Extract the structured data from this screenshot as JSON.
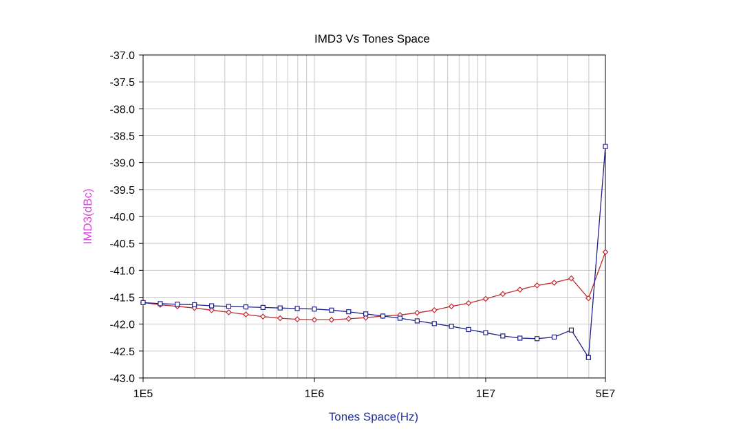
{
  "chart_data": {
    "type": "line",
    "title": "IMD3 Vs Tones Space",
    "xlabel": "Tones Space(Hz)",
    "ylabel": "IMD3(dBc)",
    "xscale": "log",
    "xlim": [
      100000,
      50000000
    ],
    "ylim": [
      -43.0,
      -37.0
    ],
    "x_tick_labels": [
      {
        "value": 100000,
        "label": "1E5"
      },
      {
        "value": 1000000,
        "label": "1E6"
      },
      {
        "value": 10000000,
        "label": "1E7"
      },
      {
        "value": 50000000,
        "label": "5E7"
      }
    ],
    "y_ticks": [
      -37.0,
      -37.5,
      -38.0,
      -38.5,
      -39.0,
      -39.5,
      -40.0,
      -40.5,
      -41.0,
      -41.5,
      -42.0,
      -42.5,
      -43.0
    ],
    "y_tick_labels": [
      "-37.0",
      "-37.5",
      "-38.0",
      "-38.5",
      "-39.0",
      "-39.5",
      "-40.0",
      "-40.5",
      "-41.0",
      "-41.5",
      "-42.0",
      "-42.5",
      "-43.0"
    ],
    "grid": true,
    "colors": {
      "xlabel": "#1f2fa8",
      "ylabel": "#d64bd6",
      "grid": "#c8c8c8"
    },
    "series": [
      {
        "color": "#c0282d",
        "marker": "diamond",
        "x": [
          100000,
          125900,
          158500,
          199500,
          251200,
          316200,
          398100,
          501200,
          631000,
          794300,
          1000000,
          1259000,
          1585000,
          1995000,
          2512000,
          3162000,
          3981000,
          5012000,
          6310000,
          7943000,
          10000000,
          12590000,
          15850000,
          19950000,
          25120000,
          31620000,
          39810000,
          50000000
        ],
        "y": [
          -41.6,
          -41.64,
          -41.67,
          -41.7,
          -41.74,
          -41.78,
          -41.82,
          -41.86,
          -41.89,
          -41.91,
          -41.92,
          -41.92,
          -41.9,
          -41.88,
          -41.85,
          -41.83,
          -41.79,
          -41.74,
          -41.67,
          -41.61,
          -41.53,
          -41.44,
          -41.36,
          -41.28,
          -41.23,
          -41.15,
          -41.52,
          -40.66
        ]
      },
      {
        "color": "#1e1e8c",
        "marker": "square",
        "x": [
          100000,
          125900,
          158500,
          199500,
          251200,
          316200,
          398100,
          501200,
          631000,
          794300,
          1000000,
          1259000,
          1585000,
          1995000,
          2512000,
          3162000,
          3981000,
          5012000,
          6310000,
          7943000,
          10000000,
          12590000,
          15850000,
          19950000,
          25120000,
          31620000,
          39810000,
          50000000
        ],
        "y": [
          -41.6,
          -41.62,
          -41.63,
          -41.64,
          -41.66,
          -41.67,
          -41.68,
          -41.69,
          -41.7,
          -41.71,
          -41.72,
          -41.74,
          -41.77,
          -41.81,
          -41.85,
          -41.89,
          -41.94,
          -41.99,
          -42.04,
          -42.1,
          -42.16,
          -42.22,
          -42.26,
          -42.27,
          -42.24,
          -42.11,
          -42.62,
          -38.7
        ]
      }
    ]
  }
}
